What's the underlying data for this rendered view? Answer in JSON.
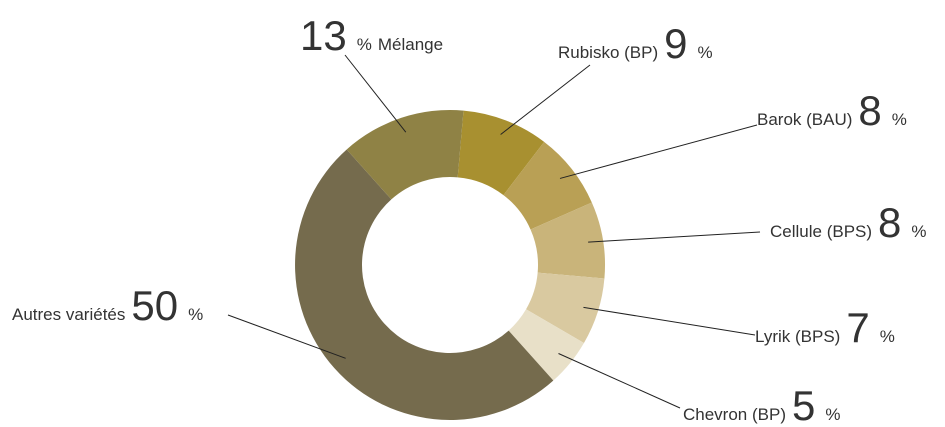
{
  "chart_data": {
    "type": "donut",
    "unit": "%",
    "categories": [
      "Rubisko (BP)",
      "Barok (BAU)",
      "Cellule (BPS)",
      "Lyrik (BPS)",
      "Chevron (BP)",
      "Autres variétés",
      "Mélange"
    ],
    "values": [
      9,
      8,
      8,
      7,
      5,
      50,
      13
    ],
    "colors": [
      "#a89030",
      "#b9a055",
      "#c9b47a",
      "#d9c9a0",
      "#e8e0c8",
      "#756b4d",
      "#8f8245"
    ]
  }
}
